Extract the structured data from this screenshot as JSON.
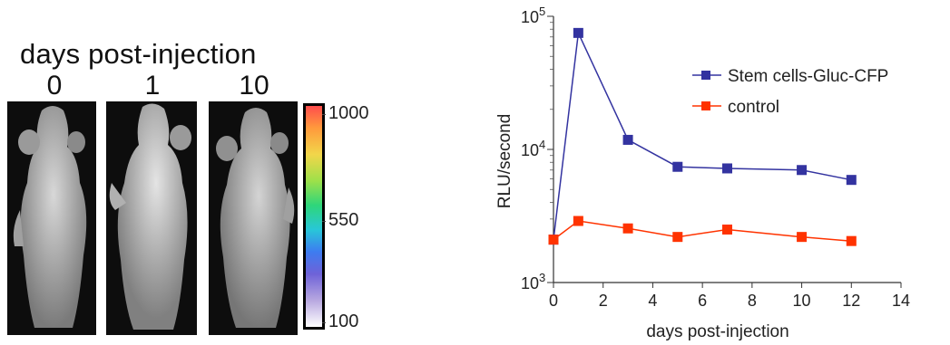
{
  "imaging": {
    "heading": "days post-injection",
    "days": [
      "0",
      "1",
      "10"
    ],
    "colorbar": {
      "ticks": [
        "1000",
        "550",
        "100"
      ],
      "top_value": 1000,
      "mid_value": 550,
      "bottom_value": 100
    }
  },
  "chart_data": {
    "type": "line",
    "title": "",
    "xlabel": "days post-injection",
    "ylabel": "RLU/second",
    "xlim": [
      0,
      14
    ],
    "ylim": [
      1000,
      100000
    ],
    "yscale": "log",
    "x_ticks": [
      0,
      2,
      4,
      6,
      8,
      10,
      12,
      14
    ],
    "y_ticks": [
      {
        "value": 1000,
        "base": "10",
        "exp": "3"
      },
      {
        "value": 10000,
        "base": "10",
        "exp": "4"
      },
      {
        "value": 100000,
        "base": "10",
        "exp": "5"
      }
    ],
    "legend_position": "top-right",
    "series": [
      {
        "name": "Stem cells-Gluc-CFP",
        "color": "#3333a0",
        "x": [
          0,
          1,
          3,
          5,
          7,
          10,
          12
        ],
        "y": [
          2100,
          75000,
          11800,
          7400,
          7200,
          7000,
          5900
        ]
      },
      {
        "name": "control",
        "color": "#ff3300",
        "x": [
          0,
          1,
          3,
          5,
          7,
          10,
          12
        ],
        "y": [
          2100,
          2900,
          2550,
          2200,
          2500,
          2200,
          2050
        ]
      }
    ]
  }
}
